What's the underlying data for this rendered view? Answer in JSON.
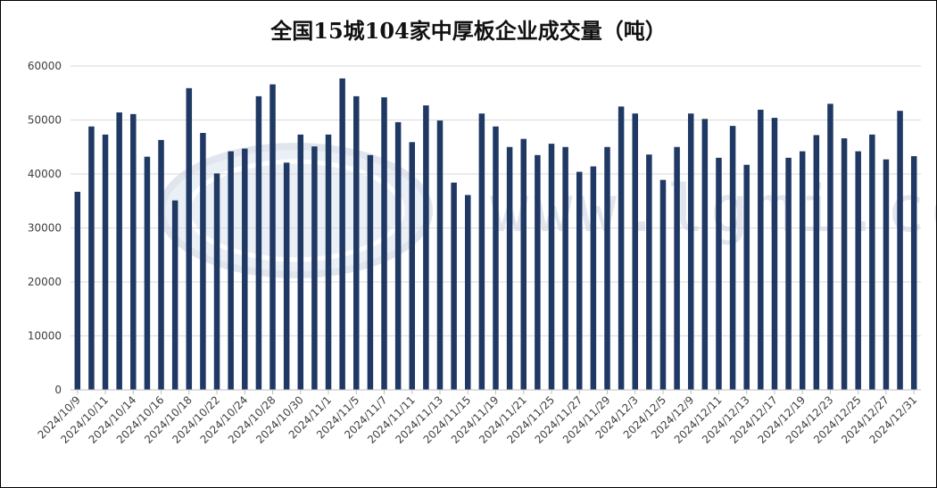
{
  "chart_data": {
    "type": "bar",
    "title": "全国15城104家中厚板企业成交量（吨）",
    "watermark": "www.lgmi.com",
    "bar_color": "#1f3864",
    "gridline_color": "#d9d9d9",
    "ylim": [
      0,
      60000
    ],
    "yticks": [
      "0",
      "10000",
      "20000",
      "30000",
      "40000",
      "50000",
      "60000"
    ],
    "grid": true,
    "legend": "none",
    "categories": [
      "2024/10/9",
      "2024/10/10",
      "2024/10/11",
      "2024/10/12",
      "2024/10/14",
      "2024/10/15",
      "2024/10/16",
      "2024/10/17",
      "2024/10/18",
      "2024/10/21",
      "2024/10/22",
      "2024/10/23",
      "2024/10/24",
      "2024/10/25",
      "2024/10/28",
      "2024/10/29",
      "2024/10/30",
      "2024/10/31",
      "2024/11/1",
      "2024/11/4",
      "2024/11/5",
      "2024/11/6",
      "2024/11/7",
      "2024/11/8",
      "2024/11/11",
      "2024/11/12",
      "2024/11/13",
      "2024/11/14",
      "2024/11/15",
      "2024/11/18",
      "2024/11/19",
      "2024/11/20",
      "2024/11/21",
      "2024/11/22",
      "2024/11/25",
      "2024/11/26",
      "2024/11/27",
      "2024/11/28",
      "2024/11/29",
      "2024/12/2",
      "2024/12/3",
      "2024/12/4",
      "2024/12/5",
      "2024/12/6",
      "2024/12/9",
      "2024/12/10",
      "2024/12/11",
      "2024/12/12",
      "2024/12/13",
      "2024/12/16",
      "2024/12/17",
      "2024/12/18",
      "2024/12/19",
      "2024/12/20",
      "2024/12/23",
      "2024/12/24",
      "2024/12/25",
      "2024/12/26",
      "2024/12/27",
      "2024/12/30",
      "2024/12/31"
    ],
    "xtick_labels": [
      "2024/10/9",
      "2024/10/11",
      "2024/10/14",
      "2024/10/16",
      "2024/10/18",
      "2024/10/22",
      "2024/10/24",
      "2024/10/28",
      "2024/10/30",
      "2024/11/1",
      "2024/11/5",
      "2024/11/7",
      "2024/11/11",
      "2024/11/13",
      "2024/11/15",
      "2024/11/19",
      "2024/11/21",
      "2024/11/25",
      "2024/11/27",
      "2024/11/29",
      "2024/12/3",
      "2024/12/5",
      "2024/12/9",
      "2024/12/11",
      "2024/12/13",
      "2024/12/17",
      "2024/12/19",
      "2024/12/23",
      "2024/12/25",
      "2024/12/27",
      "2024/12/31"
    ],
    "values": [
      36700,
      48800,
      47300,
      51400,
      51100,
      43200,
      46300,
      35100,
      55900,
      47600,
      40100,
      44200,
      44700,
      54400,
      56600,
      42100,
      47300,
      45100,
      47300,
      57700,
      54400,
      43500,
      54200,
      49600,
      45900,
      52700,
      49900,
      38400,
      36100,
      51200,
      48800,
      45000,
      46500,
      43500,
      45600,
      45000,
      40400,
      41400,
      45000,
      52500,
      51200,
      43600,
      38900,
      45000,
      51200,
      50200,
      43000,
      48900,
      41700,
      51900,
      50400,
      43000,
      44200,
      47200,
      53000,
      46600,
      44200,
      47300,
      42700,
      51700,
      43300
    ]
  }
}
